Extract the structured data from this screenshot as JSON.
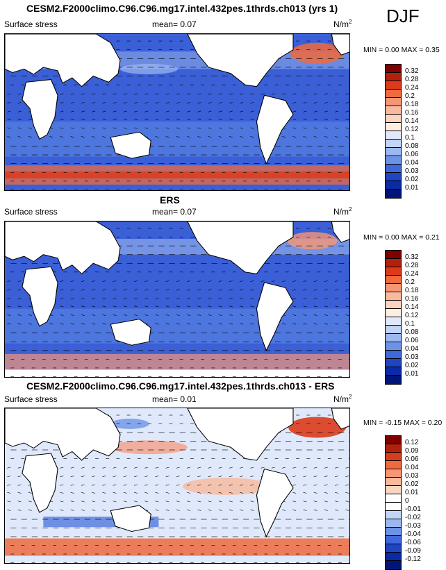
{
  "season": "DJF",
  "panels": [
    {
      "title": "CESM2.F2000climo.C96.C96.mg17.intel.432pes.1thrds.ch013 (yrs 1)",
      "var_label": "Surface stress",
      "mean_label": "mean=  0.07",
      "unit_base": "N/m",
      "unit_sup": "2",
      "stats": "MIN =  0.00 MAX =  0.35",
      "ramp": "seq",
      "colorbar_ticks": [
        "0.32",
        "0.28",
        "0.24",
        "0.2",
        "0.18",
        "0.16",
        "0.14",
        "0.12",
        "0.1",
        "0.08",
        "0.06",
        "0.04",
        "0.03",
        "0.02",
        "0.01"
      ]
    },
    {
      "title": "ERS",
      "var_label": "Surface stress",
      "mean_label": "mean=  0.07",
      "unit_base": "N/m",
      "unit_sup": "2",
      "stats": "MIN =  0.00 MAX =  0.21",
      "ramp": "seq",
      "colorbar_ticks": [
        "0.32",
        "0.28",
        "0.24",
        "0.2",
        "0.18",
        "0.16",
        "0.14",
        "0.12",
        "0.1",
        "0.08",
        "0.06",
        "0.04",
        "0.03",
        "0.02",
        "0.01"
      ]
    },
    {
      "title": "CESM2.F2000climo.C96.C96.mg17.intel.432pes.1thrds.ch013 - ERS",
      "var_label": "Surface stress",
      "mean_label": "mean=  0.01",
      "unit_base": "N/m",
      "unit_sup": "2",
      "stats": "MIN = -0.15 MAX =  0.20",
      "ramp": "div",
      "colorbar_ticks": [
        "0.12",
        "0.09",
        "0.06",
        "0.04",
        "0.03",
        "0.02",
        "0.01",
        "0",
        "-0.01",
        "-0.02",
        "-0.03",
        "-0.04",
        "-0.06",
        "-0.09",
        "-0.12"
      ]
    }
  ],
  "colors": {
    "ocean_low": "#2050d0",
    "land": "#ffffff",
    "seq_ramp": [
      "#800000",
      "#b5200d",
      "#dc3b1a",
      "#ef6a3d",
      "#f69676",
      "#f9b99c",
      "#fcd5c0",
      "#fdeee2",
      "#dfe9fb",
      "#c3d5f6",
      "#9cb8f0",
      "#6d93e6",
      "#3f68da",
      "#1e45c4",
      "#0b2aa6",
      "#00157a"
    ],
    "div_ramp": [
      "#800000",
      "#b5200d",
      "#dc3b1a",
      "#ef6a3d",
      "#f69676",
      "#f9b99c",
      "#fcd5c0",
      "#ffffff",
      "#ffffff",
      "#c3d5f6",
      "#9cb8f0",
      "#6d93e6",
      "#3f68da",
      "#1e45c4",
      "#0b2aa6",
      "#00157a"
    ]
  }
}
